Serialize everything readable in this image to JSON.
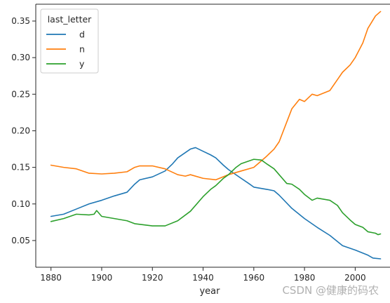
{
  "chart_data": {
    "type": "line",
    "xlabel": "year",
    "ylabel": "",
    "xlim": [
      1874,
      2014
    ],
    "ylim": [
      0.0135,
      0.373
    ],
    "xticks": [
      1880,
      1900,
      1920,
      1940,
      1960,
      1980,
      2000
    ],
    "yticks": [
      0.05,
      0.1,
      0.15,
      0.2,
      0.25,
      0.3,
      0.35
    ],
    "grid": false,
    "legend": {
      "title": "last_letter",
      "placement": "top-left"
    },
    "series": [
      {
        "name": "d",
        "color": "#1f77b4",
        "points": [
          [
            1880,
            0.083
          ],
          [
            1885,
            0.086
          ],
          [
            1890,
            0.093
          ],
          [
            1895,
            0.1
          ],
          [
            1900,
            0.105
          ],
          [
            1905,
            0.111
          ],
          [
            1910,
            0.116
          ],
          [
            1913,
            0.127
          ],
          [
            1915,
            0.133
          ],
          [
            1920,
            0.137
          ],
          [
            1925,
            0.145
          ],
          [
            1928,
            0.155
          ],
          [
            1930,
            0.163
          ],
          [
            1935,
            0.175
          ],
          [
            1937,
            0.177
          ],
          [
            1940,
            0.172
          ],
          [
            1943,
            0.167
          ],
          [
            1945,
            0.163
          ],
          [
            1948,
            0.153
          ],
          [
            1950,
            0.147
          ],
          [
            1955,
            0.135
          ],
          [
            1958,
            0.128
          ],
          [
            1960,
            0.123
          ],
          [
            1965,
            0.12
          ],
          [
            1968,
            0.118
          ],
          [
            1970,
            0.112
          ],
          [
            1975,
            0.094
          ],
          [
            1980,
            0.08
          ],
          [
            1985,
            0.068
          ],
          [
            1990,
            0.057
          ],
          [
            1995,
            0.043
          ],
          [
            2000,
            0.037
          ],
          [
            2005,
            0.03
          ],
          [
            2007,
            0.026
          ],
          [
            2010,
            0.025
          ]
        ]
      },
      {
        "name": "n",
        "color": "#ff7f0e",
        "points": [
          [
            1880,
            0.153
          ],
          [
            1885,
            0.15
          ],
          [
            1890,
            0.148
          ],
          [
            1895,
            0.142
          ],
          [
            1900,
            0.141
          ],
          [
            1905,
            0.142
          ],
          [
            1910,
            0.144
          ],
          [
            1913,
            0.15
          ],
          [
            1915,
            0.152
          ],
          [
            1920,
            0.152
          ],
          [
            1925,
            0.148
          ],
          [
            1930,
            0.14
          ],
          [
            1933,
            0.138
          ],
          [
            1935,
            0.14
          ],
          [
            1940,
            0.135
          ],
          [
            1945,
            0.133
          ],
          [
            1950,
            0.14
          ],
          [
            1955,
            0.145
          ],
          [
            1960,
            0.15
          ],
          [
            1965,
            0.165
          ],
          [
            1968,
            0.175
          ],
          [
            1970,
            0.185
          ],
          [
            1975,
            0.23
          ],
          [
            1978,
            0.243
          ],
          [
            1980,
            0.24
          ],
          [
            1983,
            0.25
          ],
          [
            1985,
            0.248
          ],
          [
            1990,
            0.255
          ],
          [
            1993,
            0.27
          ],
          [
            1995,
            0.28
          ],
          [
            1998,
            0.29
          ],
          [
            2000,
            0.3
          ],
          [
            2003,
            0.32
          ],
          [
            2005,
            0.34
          ],
          [
            2008,
            0.357
          ],
          [
            2010,
            0.363
          ]
        ]
      },
      {
        "name": "y",
        "color": "#2ca02c",
        "points": [
          [
            1880,
            0.076
          ],
          [
            1885,
            0.08
          ],
          [
            1890,
            0.086
          ],
          [
            1895,
            0.085
          ],
          [
            1897,
            0.086
          ],
          [
            1898,
            0.091
          ],
          [
            1900,
            0.083
          ],
          [
            1905,
            0.08
          ],
          [
            1910,
            0.077
          ],
          [
            1913,
            0.073
          ],
          [
            1920,
            0.07
          ],
          [
            1925,
            0.07
          ],
          [
            1930,
            0.077
          ],
          [
            1935,
            0.09
          ],
          [
            1940,
            0.11
          ],
          [
            1943,
            0.12
          ],
          [
            1945,
            0.125
          ],
          [
            1948,
            0.135
          ],
          [
            1950,
            0.14
          ],
          [
            1953,
            0.15
          ],
          [
            1955,
            0.155
          ],
          [
            1960,
            0.161
          ],
          [
            1963,
            0.16
          ],
          [
            1965,
            0.155
          ],
          [
            1968,
            0.148
          ],
          [
            1970,
            0.14
          ],
          [
            1973,
            0.128
          ],
          [
            1975,
            0.127
          ],
          [
            1978,
            0.12
          ],
          [
            1980,
            0.113
          ],
          [
            1983,
            0.105
          ],
          [
            1985,
            0.108
          ],
          [
            1990,
            0.105
          ],
          [
            1993,
            0.098
          ],
          [
            1995,
            0.088
          ],
          [
            1998,
            0.078
          ],
          [
            2000,
            0.072
          ],
          [
            2003,
            0.068
          ],
          [
            2005,
            0.062
          ],
          [
            2008,
            0.06
          ],
          [
            2009,
            0.058
          ],
          [
            2010,
            0.059
          ]
        ]
      }
    ]
  },
  "watermark": "CSDN @健康的码农"
}
